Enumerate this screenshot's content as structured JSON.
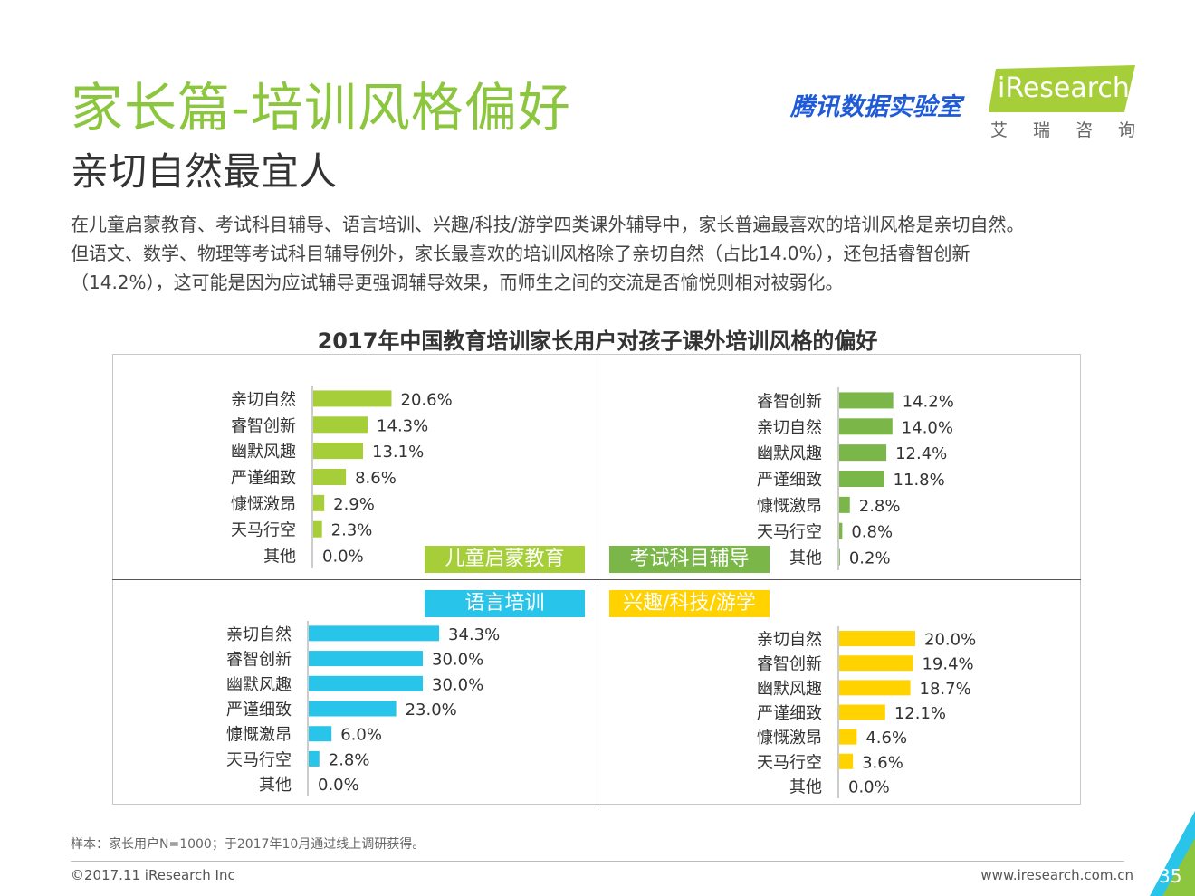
{
  "header": {
    "title": "家长篇-培训风格偏好",
    "subtitle": "亲切自然最宜人",
    "description_lines": [
      "在儿童启蒙教育、考试科目辅导、语言培训、兴趣/科技/游学四类课外辅导中，家长普遍最喜欢的培训风格是亲切自然。",
      "但语文、数学、物理等考试科目辅导例外，家长最喜欢的培训风格除了亲切自然（占比14.0%），还包括睿智创新",
      "（14.2%），这可能是因为应试辅导更强调辅导效果，而师生之间的交流是否愉悦则相对被弱化。"
    ]
  },
  "brand": {
    "tencent": "腾讯数据实验室",
    "iresearch": "iResearch",
    "iresearch_cn": "艾瑞咨询",
    "accent": "#a6ce39"
  },
  "chart_title": "2017年中国教育培训家长用户对孩子课外培训风格的偏好",
  "chart_data": [
    {
      "type": "bar",
      "orientation": "horizontal",
      "panel": "儿童启蒙教育",
      "color": "#a6ce39",
      "categories": [
        "亲切自然",
        "睿智创新",
        "幽默风趣",
        "严谨细致",
        "慷慨激昂",
        "天马行空",
        "其他"
      ],
      "values": [
        20.6,
        14.3,
        13.1,
        8.6,
        2.9,
        2.3,
        0.0
      ],
      "labels": [
        "20.6%",
        "14.3%",
        "13.1%",
        "8.6%",
        "2.9%",
        "2.3%",
        "0.0%"
      ]
    },
    {
      "type": "bar",
      "orientation": "horizontal",
      "panel": "考试科目辅导",
      "color": "#7ab648",
      "categories": [
        "睿智创新",
        "亲切自然",
        "幽默风趣",
        "严谨细致",
        "慷慨激昂",
        "天马行空",
        "其他"
      ],
      "values": [
        14.2,
        14.0,
        12.4,
        11.8,
        2.8,
        0.8,
        0.2
      ],
      "labels": [
        "14.2%",
        "14.0%",
        "12.4%",
        "11.8%",
        "2.8%",
        "0.8%",
        "0.2%"
      ]
    },
    {
      "type": "bar",
      "orientation": "horizontal",
      "panel": "语言培训",
      "color": "#29c4ea",
      "categories": [
        "亲切自然",
        "睿智创新",
        "幽默风趣",
        "严谨细致",
        "慷慨激昂",
        "天马行空",
        "其他"
      ],
      "values": [
        34.3,
        30.0,
        30.0,
        23.0,
        6.0,
        2.8,
        0.0
      ],
      "labels": [
        "34.3%",
        "30.0%",
        "30.0%",
        "23.0%",
        "6.0%",
        "2.8%",
        "0.0%"
      ]
    },
    {
      "type": "bar",
      "orientation": "horizontal",
      "panel": "兴趣/科技/游学",
      "color": "#ffd200",
      "categories": [
        "亲切自然",
        "睿智创新",
        "幽默风趣",
        "严谨细致",
        "慷慨激昂",
        "天马行空",
        "其他"
      ],
      "values": [
        20.0,
        19.4,
        18.7,
        12.1,
        4.6,
        3.6,
        0.0
      ],
      "labels": [
        "20.0%",
        "19.4%",
        "18.7%",
        "12.1%",
        "4.6%",
        "3.6%",
        "0.0%"
      ]
    }
  ],
  "footer": {
    "note": "样本：家长用户N=1000；于2017年10月通过线上调研获得。",
    "copyright": "©2017.11 iResearch Inc",
    "site": "www.iresearch.com.cn",
    "page": "35",
    "corner_colors": [
      "#8cc63f",
      "#29c4ea"
    ]
  }
}
